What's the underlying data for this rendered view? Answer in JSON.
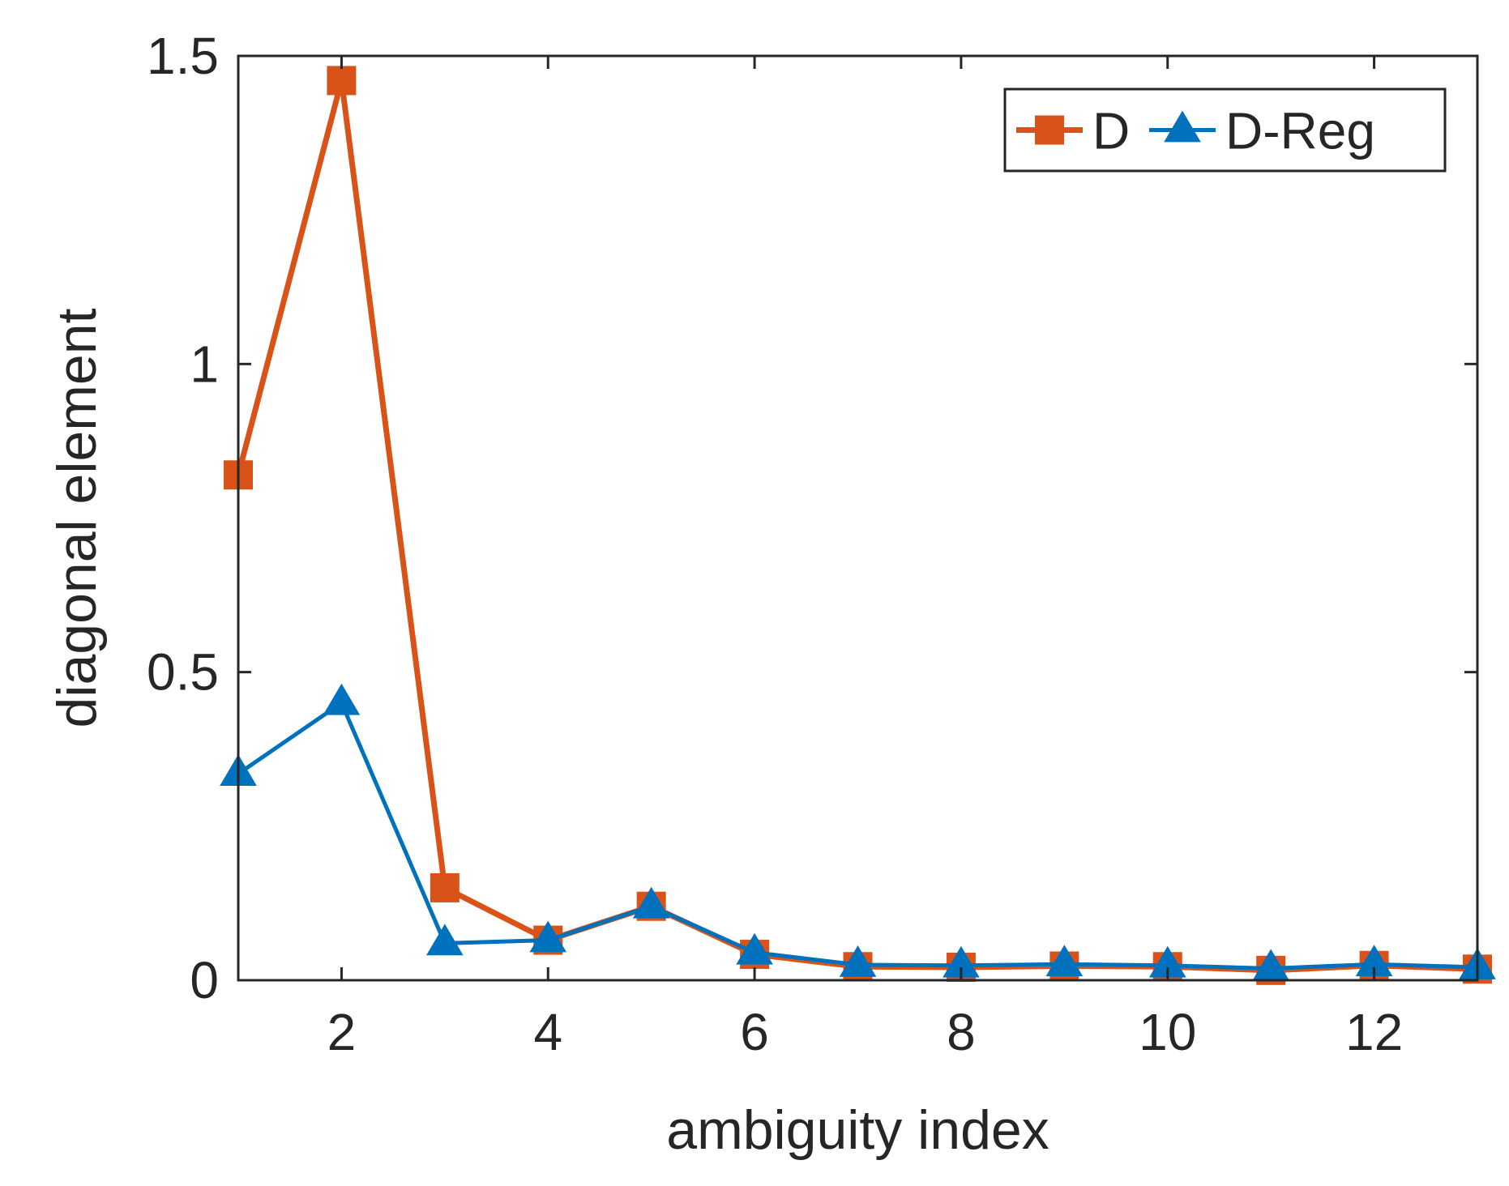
{
  "chart_data": {
    "type": "line",
    "xlabel": "ambiguity index",
    "ylabel": "diagonal element",
    "xlim": [
      1,
      13
    ],
    "ylim": [
      0,
      1.5
    ],
    "xticks": [
      2,
      4,
      6,
      8,
      10,
      12
    ],
    "yticks": [
      0,
      0.5,
      1,
      1.5
    ],
    "xtick_labels": [
      "2",
      "4",
      "6",
      "8",
      "10",
      "12"
    ],
    "ytick_labels": [
      "0",
      "0.5",
      "1",
      "1.5"
    ],
    "x": [
      1,
      2,
      3,
      4,
      5,
      6,
      7,
      8,
      9,
      10,
      11,
      12,
      13
    ],
    "series": [
      {
        "name": "D",
        "color": "#D95319",
        "marker": "square",
        "values": [
          0.82,
          1.46,
          0.15,
          0.065,
          0.12,
          0.042,
          0.022,
          0.021,
          0.023,
          0.022,
          0.016,
          0.024,
          0.018
        ]
      },
      {
        "name": "D-Reg",
        "color": "#0072BD",
        "marker": "triangle",
        "values": [
          0.335,
          0.45,
          0.06,
          0.065,
          0.12,
          0.045,
          0.025,
          0.024,
          0.026,
          0.024,
          0.019,
          0.026,
          0.021
        ]
      }
    ],
    "grid": false,
    "legend_position": "top-right"
  }
}
